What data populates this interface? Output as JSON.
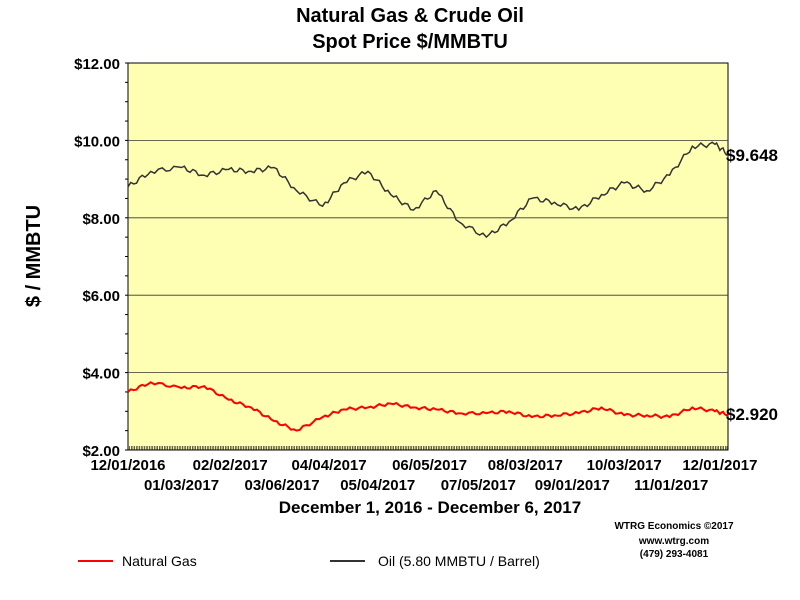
{
  "chart_data": {
    "type": "line",
    "title": "Natural Gas & Crude Oil",
    "subtitle": "Spot Price $/MMBTU",
    "xlabel": "December 1, 2016 - December 6, 2017",
    "ylabel": "$ / MMBTU",
    "ylim": [
      2,
      12
    ],
    "y_ticks": [
      "$2.00",
      "$4.00",
      "$6.00",
      "$8.00",
      "$10.00",
      "$12.00"
    ],
    "x_ticks_top": [
      "12/01/2016",
      "02/02/2017",
      "04/04/2017",
      "06/05/2017",
      "08/03/2017",
      "10/03/2017",
      "12/01/2017"
    ],
    "x_ticks_bottom": [
      "01/03/2017",
      "03/06/2017",
      "05/04/2017",
      "07/05/2017",
      "09/01/2017",
      "11/01/2017"
    ],
    "legend_placement": "bottom",
    "grid": true,
    "x": [
      "12/01/2016",
      "12/15/2016",
      "01/03/2017",
      "01/17/2017",
      "02/01/2017",
      "02/15/2017",
      "03/01/2017",
      "03/15/2017",
      "03/31/2017",
      "04/13/2017",
      "04/28/2017",
      "05/12/2017",
      "05/26/2017",
      "06/09/2017",
      "06/23/2017",
      "07/10/2017",
      "07/24/2017",
      "08/07/2017",
      "08/21/2017",
      "09/05/2017",
      "09/19/2017",
      "10/03/2017",
      "10/17/2017",
      "10/31/2017",
      "11/14/2017",
      "11/28/2017",
      "12/06/2017"
    ],
    "series": [
      {
        "name": "Oil (5.80 MMBTU / Barrel)",
        "color": "#333333",
        "values": [
          8.8,
          9.2,
          9.3,
          9.1,
          9.25,
          9.2,
          9.3,
          8.7,
          8.3,
          8.9,
          9.2,
          8.6,
          8.2,
          8.7,
          7.9,
          7.5,
          7.9,
          8.5,
          8.4,
          8.2,
          8.6,
          8.9,
          8.7,
          9.1,
          9.85,
          9.9,
          9.648
        ]
      },
      {
        "name": "Natural Gas",
        "color": "#ff0000",
        "values": [
          3.5,
          3.75,
          3.6,
          3.65,
          3.3,
          3.1,
          2.75,
          2.5,
          2.85,
          3.05,
          3.1,
          3.2,
          3.1,
          3.05,
          2.95,
          2.95,
          3.0,
          2.85,
          2.9,
          2.95,
          3.1,
          2.9,
          2.9,
          2.85,
          3.1,
          3.0,
          2.92
        ]
      }
    ],
    "end_labels": {
      "oil": "$9.648",
      "gas": "$2.920"
    }
  },
  "credits": {
    "line1": "WTRG Economics  ©2017",
    "line2": "www.wtrg.com",
    "line3": "(479) 293-4081"
  },
  "legend": {
    "gas": "Natural Gas",
    "oil": "Oil (5.80 MMBTU / Barrel)"
  }
}
